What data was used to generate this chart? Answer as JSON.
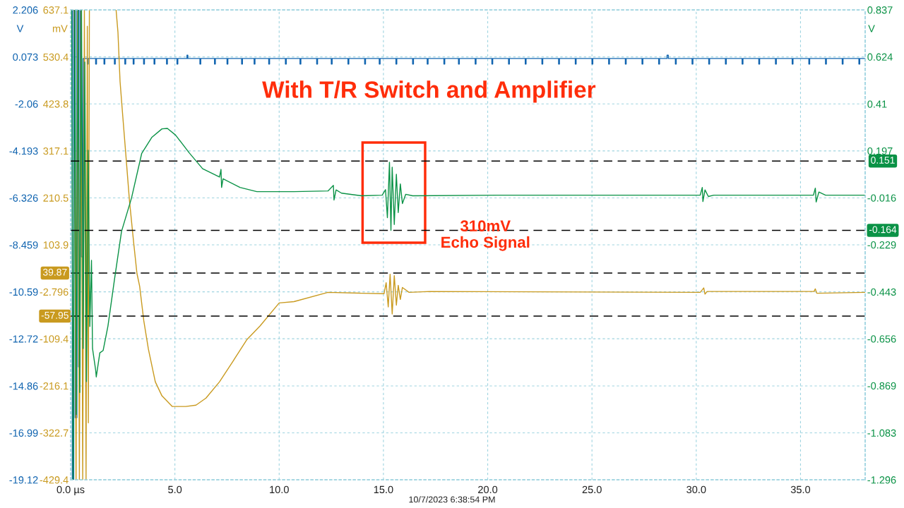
{
  "chart_data": {
    "type": "line",
    "title": "With T/R Switch and Amplifier",
    "annotations": [
      "310mV\nEcho Signal",
      "10/7/2023 6:38:54 PM"
    ],
    "xlim": [
      0,
      38.1
    ],
    "xticks": [
      {
        "value": 0,
        "label": "0.0 µs"
      },
      {
        "value": 5,
        "label": "5.0"
      },
      {
        "value": 10,
        "label": "10.0"
      },
      {
        "value": 15,
        "label": "15.0"
      },
      {
        "value": 20,
        "label": "20.0"
      },
      {
        "value": 25,
        "label": "25.0"
      },
      {
        "value": 30,
        "label": "30.0"
      },
      {
        "value": 35,
        "label": "35.0"
      }
    ],
    "ylabel": "V",
    "ylim": [
      -19.12,
      2.206
    ],
    "yticks": [
      2.206,
      0.073,
      -2.06,
      -4.193,
      -6.326,
      -8.459,
      -10.59,
      -12.72,
      -14.86,
      -16.99,
      -19.12
    ],
    "y2label": "mV",
    "y2lim": [
      -429.4,
      637.1
    ],
    "y2ticks": [
      637.1,
      530.4,
      423.8,
      317.1,
      210.5,
      103.9,
      -2.796,
      -109.4,
      -216.1,
      -322.7,
      -429.4
    ],
    "y3label": "V",
    "y3lim": [
      -1.296,
      0.837
    ],
    "y3ticks": [
      0.837,
      0.624,
      0.41,
      0.197,
      -0.016,
      -0.229,
      -0.443,
      -0.656,
      -0.869,
      -1.083,
      -1.296
    ],
    "grid": true,
    "line_style": "solid",
    "ref_lines": [
      {
        "axis": "y3",
        "value": 0.151,
        "label": "0.151",
        "color": "#000000",
        "line_style": "dashed"
      },
      {
        "axis": "y3",
        "value": -0.164,
        "label": "-0.164",
        "color": "#000000",
        "line_style": "dashed"
      },
      {
        "axis": "y2",
        "value": 39.87,
        "label": "39.87",
        "color": "#000000",
        "line_style": "dashed"
      },
      {
        "axis": "y2",
        "value": -57.95,
        "label": "-57.95",
        "color": "#000000",
        "line_style": "dashed"
      }
    ],
    "series": [
      {
        "type": "step",
        "color": "#1064b0",
        "x": [
          0.03,
          0.08,
          0.15,
          0.22,
          0.3,
          0.38,
          0.45,
          0.52,
          0.6,
          0.8,
          0.84,
          1.2,
          1.24,
          1.6,
          1.64,
          2.1,
          2.14,
          2.6,
          2.64,
          3.0,
          3.04,
          3.5,
          3.54,
          4.0,
          4.04,
          4.6,
          4.64,
          5.1,
          5.14,
          5.58,
          5.62,
          6.2,
          6.24,
          6.9,
          6.94,
          7.5,
          7.54,
          8.2,
          8.24,
          8.8,
          8.84,
          9.5,
          9.54,
          10.3,
          10.34,
          11.0,
          11.04,
          11.8,
          11.84,
          12.5,
          12.54,
          13.3,
          13.34,
          14.1,
          14.14,
          14.8,
          14.84,
          15.6,
          15.64,
          16.4,
          16.44,
          17.1,
          17.14,
          17.9,
          17.94,
          18.6,
          18.64,
          19.4,
          19.44,
          20.2,
          20.24,
          21.0,
          21.04,
          21.8,
          21.84,
          22.6,
          22.64,
          23.4,
          23.44,
          24.2,
          24.24,
          25.0,
          25.04,
          25.8,
          25.84,
          26.6,
          26.64,
          27.4,
          27.44,
          28.2,
          28.24,
          28.6,
          28.66,
          29.0,
          29.04,
          29.8,
          29.84,
          30.6,
          30.64,
          31.4,
          31.44,
          32.2,
          32.24,
          33.0,
          33.04,
          33.8,
          33.84,
          34.6,
          34.64,
          35.4,
          35.44,
          36.2,
          36.24,
          37.0,
          37.04,
          37.8,
          37.84,
          38.1
        ],
        "values": [
          2.2,
          -19.1,
          2.2,
          -16.3,
          2.2,
          -14,
          2.2,
          -9,
          0,
          -0.25,
          0,
          -0.25,
          0,
          -0.25,
          0,
          -0.25,
          0,
          -0.25,
          0,
          -0.25,
          0,
          -0.25,
          0,
          -0.25,
          0,
          -0.25,
          0,
          -0.25,
          0,
          0.15,
          0,
          -0.25,
          0,
          -0.25,
          0,
          -0.25,
          0,
          -0.25,
          0,
          -0.25,
          0,
          -0.25,
          0,
          -0.25,
          0,
          -0.25,
          0,
          -0.25,
          0,
          -0.25,
          0,
          -0.25,
          0,
          -0.25,
          0,
          -0.25,
          0,
          -0.25,
          0,
          -0.25,
          0,
          -0.25,
          0,
          -0.25,
          0,
          -0.25,
          0,
          -0.25,
          0,
          -0.25,
          0,
          -0.25,
          0,
          -0.25,
          0,
          -0.25,
          0,
          -0.25,
          0,
          -0.25,
          0,
          -0.25,
          0,
          -0.25,
          0,
          -0.25,
          0,
          -0.25,
          0,
          -0.25,
          0,
          0.15,
          0,
          -0.25,
          0,
          -0.25,
          0,
          -0.25,
          0,
          -0.25,
          0,
          -0.25,
          0,
          -0.25,
          0,
          -0.25,
          0,
          -0.25,
          0,
          -0.25,
          0,
          -0.25,
          0,
          -0.25,
          0,
          -0.25,
          0,
          0
        ]
      },
      {
        "axis": "y2",
        "color": "#c99a1f",
        "x": [
          0.18,
          0.26,
          0.34,
          0.42,
          0.5,
          0.58,
          0.66,
          0.74,
          0.8,
          0.85,
          0.9,
          1.5,
          2.18,
          2.27,
          2.37,
          2.5,
          2.66,
          2.82,
          3.02,
          3.18,
          3.31,
          3.51,
          3.73,
          4.06,
          4.38,
          4.87,
          5.52,
          6.01,
          6.49,
          7.14,
          7.79,
          8.44,
          9.09,
          10.0,
          10.71,
          12.34,
          13.96,
          15.03,
          15.13,
          15.23,
          15.32,
          15.42,
          15.52,
          15.62,
          15.71,
          15.81,
          15.91,
          16.23,
          17.21,
          30.19,
          30.36,
          30.42,
          30.52,
          35.65,
          35.71,
          35.78,
          38.1
        ],
        "values": [
          637,
          -429,
          637,
          -429,
          637,
          -429,
          637,
          -429,
          600,
          -300,
          637,
          null,
          637,
          586,
          475,
          396,
          301,
          205,
          110,
          39,
          10,
          -69,
          -133,
          -207,
          -239,
          -263,
          -263,
          -260,
          -244,
          -207,
          -160,
          -112,
          -80,
          -28,
          -25,
          -4,
          -6,
          -7,
          18,
          -37,
          37,
          -53,
          34,
          -33,
          12,
          -20,
          7,
          -4,
          -2,
          -4,
          6,
          -8,
          -2,
          -2,
          4,
          -6,
          -4
        ]
      },
      {
        "axis": "y3",
        "color": "#0a9246",
        "x": [
          0.05,
          0.12,
          0.2,
          0.28,
          0.36,
          0.44,
          0.52,
          0.6,
          0.68,
          0.76,
          0.84,
          0.92,
          1.0,
          1.05,
          1.2,
          1.23,
          1.4,
          1.56,
          1.79,
          2.11,
          2.44,
          2.92,
          3.41,
          3.9,
          4.38,
          4.64,
          5.03,
          5.68,
          6.33,
          7.14,
          7.21,
          7.24,
          7.31,
          8.12,
          8.93,
          10.71,
          12.34,
          12.6,
          12.63,
          12.73,
          12.99,
          13.96,
          14.94,
          15.1,
          15.19,
          15.29,
          15.36,
          15.42,
          15.52,
          15.62,
          15.71,
          15.81,
          15.91,
          16.07,
          16.4,
          20.45,
          30.19,
          30.29,
          30.32,
          30.42,
          30.58,
          30.84,
          35.62,
          35.71,
          35.75,
          35.88,
          36.2,
          38.1
        ],
        "values": [
          0.837,
          -1.296,
          0.837,
          -1.0,
          0.837,
          -0.9,
          0.837,
          -0.7,
          0.6,
          -0.85,
          0.2,
          -0.6,
          -0.3,
          -0.7,
          -0.798,
          -0.829,
          -0.72,
          -0.709,
          -0.598,
          -0.382,
          -0.169,
          -0.017,
          0.186,
          0.259,
          0.297,
          0.299,
          0.269,
          0.189,
          0.116,
          0.078,
          0.113,
          0.031,
          0.07,
          0.031,
          0.012,
          0.012,
          0.015,
          0.04,
          -0.026,
          0.02,
          0.005,
          -0.007,
          -0.004,
          0.021,
          -0.106,
          0.145,
          -0.164,
          0.123,
          -0.137,
          0.091,
          -0.083,
          0.047,
          -0.042,
          0.0,
          -0.007,
          -0.004,
          -0.004,
          0.031,
          -0.033,
          0.02,
          -0.01,
          -0.004,
          -0.004,
          0.028,
          -0.035,
          0.01,
          -0.004,
          -0.004
        ]
      }
    ]
  }
}
